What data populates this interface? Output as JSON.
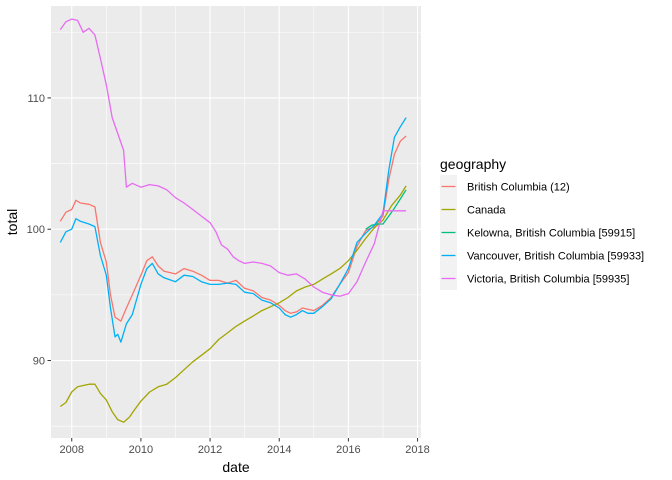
{
  "chart_data": {
    "type": "line",
    "xlabel": "date",
    "ylabel": "total",
    "xlim": [
      2007.4,
      2018.1
    ],
    "ylim": [
      84.1,
      117.0
    ],
    "x_ticks": [
      2008,
      2010,
      2012,
      2014,
      2016,
      2018
    ],
    "x_tick_labels": [
      "2008",
      "2010",
      "2012",
      "2014",
      "2016",
      "2018"
    ],
    "y_ticks": [
      90,
      100,
      110
    ],
    "y_tick_labels": [
      "90",
      "100",
      "110"
    ],
    "grid": true,
    "panel_background": "#ebebeb",
    "legend": {
      "title": "geography",
      "position": "right"
    },
    "series": [
      {
        "name": "British Columbia (12)",
        "color": "#f8766d",
        "points": [
          [
            2007.67,
            100.6
          ],
          [
            2007.83,
            101.3
          ],
          [
            2008.0,
            101.5
          ],
          [
            2008.12,
            102.2
          ],
          [
            2008.25,
            102.0
          ],
          [
            2008.5,
            101.9
          ],
          [
            2008.67,
            101.7
          ],
          [
            2008.83,
            99.0
          ],
          [
            2009.0,
            97.5
          ],
          [
            2009.12,
            95.0
          ],
          [
            2009.25,
            93.3
          ],
          [
            2009.42,
            93.0
          ],
          [
            2009.58,
            94.0
          ],
          [
            2009.75,
            95.0
          ],
          [
            2010.0,
            96.5
          ],
          [
            2010.17,
            97.6
          ],
          [
            2010.33,
            97.9
          ],
          [
            2010.5,
            97.2
          ],
          [
            2010.67,
            96.8
          ],
          [
            2011.0,
            96.6
          ],
          [
            2011.25,
            97.0
          ],
          [
            2011.5,
            96.8
          ],
          [
            2011.75,
            96.5
          ],
          [
            2012.0,
            96.1
          ],
          [
            2012.25,
            96.1
          ],
          [
            2012.5,
            95.9
          ],
          [
            2012.75,
            96.1
          ],
          [
            2013.0,
            95.5
          ],
          [
            2013.25,
            95.3
          ],
          [
            2013.5,
            94.8
          ],
          [
            2013.75,
            94.6
          ],
          [
            2014.0,
            94.2
          ],
          [
            2014.17,
            93.8
          ],
          [
            2014.33,
            93.6
          ],
          [
            2014.5,
            93.7
          ],
          [
            2014.67,
            94.0
          ],
          [
            2014.83,
            93.9
          ],
          [
            2015.0,
            93.8
          ],
          [
            2015.25,
            94.2
          ],
          [
            2015.5,
            94.8
          ],
          [
            2015.75,
            95.8
          ],
          [
            2016.0,
            96.7
          ],
          [
            2016.25,
            98.7
          ],
          [
            2016.5,
            99.9
          ],
          [
            2016.75,
            100.2
          ],
          [
            2017.0,
            101.0
          ],
          [
            2017.17,
            103.8
          ],
          [
            2017.33,
            105.7
          ],
          [
            2017.5,
            106.7
          ],
          [
            2017.67,
            107.1
          ]
        ]
      },
      {
        "name": "Canada",
        "color": "#a3a500",
        "points": [
          [
            2007.67,
            86.5
          ],
          [
            2007.83,
            86.8
          ],
          [
            2008.0,
            87.6
          ],
          [
            2008.17,
            88.0
          ],
          [
            2008.33,
            88.1
          ],
          [
            2008.5,
            88.2
          ],
          [
            2008.67,
            88.2
          ],
          [
            2008.83,
            87.5
          ],
          [
            2009.0,
            87.0
          ],
          [
            2009.17,
            86.1
          ],
          [
            2009.33,
            85.5
          ],
          [
            2009.5,
            85.3
          ],
          [
            2009.67,
            85.7
          ],
          [
            2009.83,
            86.3
          ],
          [
            2010.0,
            86.9
          ],
          [
            2010.25,
            87.6
          ],
          [
            2010.5,
            88.0
          ],
          [
            2010.75,
            88.2
          ],
          [
            2011.0,
            88.7
          ],
          [
            2011.25,
            89.3
          ],
          [
            2011.5,
            89.9
          ],
          [
            2011.75,
            90.4
          ],
          [
            2012.0,
            90.9
          ],
          [
            2012.25,
            91.6
          ],
          [
            2012.5,
            92.1
          ],
          [
            2012.75,
            92.6
          ],
          [
            2013.0,
            93.0
          ],
          [
            2013.25,
            93.4
          ],
          [
            2013.5,
            93.8
          ],
          [
            2013.75,
            94.1
          ],
          [
            2014.0,
            94.4
          ],
          [
            2014.25,
            94.8
          ],
          [
            2014.5,
            95.3
          ],
          [
            2014.75,
            95.6
          ],
          [
            2015.0,
            95.8
          ],
          [
            2015.25,
            96.2
          ],
          [
            2015.5,
            96.6
          ],
          [
            2015.75,
            97.0
          ],
          [
            2016.0,
            97.6
          ],
          [
            2016.25,
            98.4
          ],
          [
            2016.5,
            99.3
          ],
          [
            2016.75,
            100.1
          ],
          [
            2017.0,
            100.7
          ],
          [
            2017.25,
            101.8
          ],
          [
            2017.5,
            102.6
          ],
          [
            2017.67,
            103.3
          ]
        ]
      },
      {
        "name": "Kelowna, British Columbia [59915]",
        "color": "#00bf7d",
        "points": [
          [
            2016.5,
            100.0
          ],
          [
            2016.67,
            100.3
          ],
          [
            2016.83,
            100.4
          ],
          [
            2017.0,
            100.4
          ],
          [
            2017.17,
            101.0
          ],
          [
            2017.33,
            101.6
          ],
          [
            2017.5,
            102.3
          ],
          [
            2017.67,
            103.0
          ]
        ]
      },
      {
        "name": "Vancouver, British Columbia [59933]",
        "color": "#00b0f6",
        "points": [
          [
            2007.67,
            99.0
          ],
          [
            2007.83,
            99.8
          ],
          [
            2008.0,
            100.0
          ],
          [
            2008.12,
            100.8
          ],
          [
            2008.25,
            100.6
          ],
          [
            2008.5,
            100.4
          ],
          [
            2008.67,
            100.2
          ],
          [
            2008.83,
            98.0
          ],
          [
            2009.0,
            96.5
          ],
          [
            2009.12,
            94.0
          ],
          [
            2009.25,
            91.8
          ],
          [
            2009.33,
            92.0
          ],
          [
            2009.42,
            91.4
          ],
          [
            2009.58,
            92.8
          ],
          [
            2009.75,
            93.5
          ],
          [
            2010.0,
            95.8
          ],
          [
            2010.17,
            97.0
          ],
          [
            2010.33,
            97.4
          ],
          [
            2010.5,
            96.6
          ],
          [
            2010.67,
            96.3
          ],
          [
            2011.0,
            96.0
          ],
          [
            2011.25,
            96.5
          ],
          [
            2011.5,
            96.4
          ],
          [
            2011.75,
            96.0
          ],
          [
            2012.0,
            95.8
          ],
          [
            2012.25,
            95.8
          ],
          [
            2012.5,
            95.9
          ],
          [
            2012.75,
            95.8
          ],
          [
            2013.0,
            95.2
          ],
          [
            2013.25,
            95.1
          ],
          [
            2013.5,
            94.6
          ],
          [
            2013.75,
            94.4
          ],
          [
            2014.0,
            94.0
          ],
          [
            2014.17,
            93.5
          ],
          [
            2014.33,
            93.3
          ],
          [
            2014.5,
            93.5
          ],
          [
            2014.67,
            93.8
          ],
          [
            2014.83,
            93.6
          ],
          [
            2015.0,
            93.6
          ],
          [
            2015.25,
            94.1
          ],
          [
            2015.5,
            94.7
          ],
          [
            2015.75,
            95.8
          ],
          [
            2016.0,
            97.0
          ],
          [
            2016.25,
            99.0
          ],
          [
            2016.5,
            99.7
          ],
          [
            2016.75,
            100.3
          ],
          [
            2017.0,
            101.2
          ],
          [
            2017.17,
            104.5
          ],
          [
            2017.33,
            107.0
          ],
          [
            2017.5,
            107.8
          ],
          [
            2017.67,
            108.5
          ]
        ]
      },
      {
        "name": "Victoria, British Columbia [59935]",
        "color": "#e76bf3",
        "points": [
          [
            2007.67,
            115.2
          ],
          [
            2007.83,
            115.8
          ],
          [
            2008.0,
            116.0
          ],
          [
            2008.17,
            115.9
          ],
          [
            2008.33,
            115.0
          ],
          [
            2008.5,
            115.3
          ],
          [
            2008.67,
            114.8
          ],
          [
            2008.83,
            113.0
          ],
          [
            2009.0,
            111.0
          ],
          [
            2009.17,
            108.5
          ],
          [
            2009.33,
            107.3
          ],
          [
            2009.5,
            106.0
          ],
          [
            2009.58,
            103.2
          ],
          [
            2009.75,
            103.5
          ],
          [
            2010.0,
            103.2
          ],
          [
            2010.25,
            103.4
          ],
          [
            2010.5,
            103.3
          ],
          [
            2010.75,
            103.0
          ],
          [
            2011.0,
            102.4
          ],
          [
            2011.25,
            102.0
          ],
          [
            2011.5,
            101.5
          ],
          [
            2011.75,
            101.0
          ],
          [
            2012.0,
            100.5
          ],
          [
            2012.17,
            99.8
          ],
          [
            2012.33,
            98.8
          ],
          [
            2012.5,
            98.5
          ],
          [
            2012.67,
            97.9
          ],
          [
            2012.83,
            97.6
          ],
          [
            2013.0,
            97.4
          ],
          [
            2013.25,
            97.5
          ],
          [
            2013.5,
            97.4
          ],
          [
            2013.75,
            97.2
          ],
          [
            2014.0,
            96.7
          ],
          [
            2014.25,
            96.5
          ],
          [
            2014.5,
            96.6
          ],
          [
            2014.75,
            96.2
          ],
          [
            2015.0,
            95.6
          ],
          [
            2015.25,
            95.2
          ],
          [
            2015.5,
            95.0
          ],
          [
            2015.75,
            94.9
          ],
          [
            2016.0,
            95.1
          ],
          [
            2016.25,
            96.0
          ],
          [
            2016.5,
            97.5
          ],
          [
            2016.75,
            98.9
          ],
          [
            2017.0,
            101.4
          ],
          [
            2017.25,
            101.4
          ],
          [
            2017.5,
            101.4
          ],
          [
            2017.67,
            101.4
          ]
        ]
      }
    ]
  }
}
